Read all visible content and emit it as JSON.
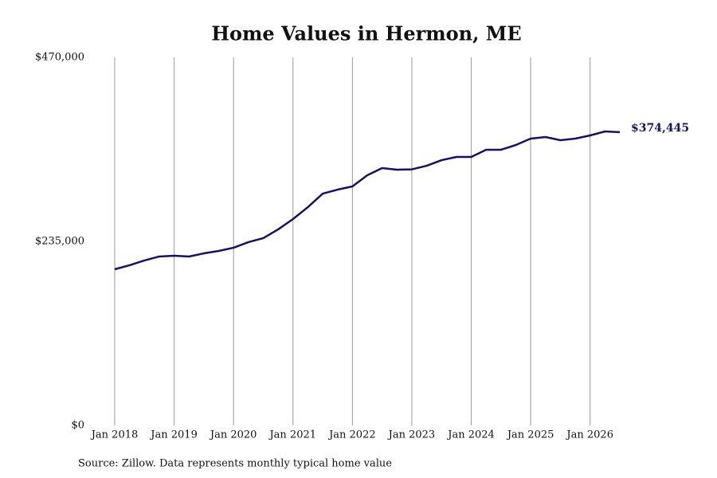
{
  "chart_data": {
    "type": "line",
    "title": "Home Values in Hermon, ME",
    "source": "Source: Zillow. Data represents monthly typical home value",
    "x": [
      "2018-01",
      "2018-04",
      "2018-07",
      "2018-10",
      "2019-01",
      "2019-04",
      "2019-07",
      "2019-10",
      "2020-01",
      "2020-04",
      "2020-07",
      "2020-10",
      "2021-01",
      "2021-04",
      "2021-07",
      "2021-10",
      "2022-01",
      "2022-04",
      "2022-07",
      "2022-10",
      "2023-01",
      "2023-04",
      "2023-07",
      "2023-10",
      "2024-01",
      "2024-04",
      "2024-07",
      "2024-10",
      "2025-01",
      "2025-04",
      "2025-07",
      "2025-10",
      "2026-01",
      "2026-04",
      "2026-07"
    ],
    "series": [
      {
        "name": "Home value",
        "color": "#14145e",
        "values": [
          199400,
          204500,
          210600,
          215700,
          216700,
          215700,
          219700,
          222800,
          226900,
          234000,
          239100,
          250300,
          263500,
          278700,
          296000,
          301100,
          305200,
          319400,
          328600,
          326600,
          327000,
          331600,
          338700,
          342800,
          342800,
          352000,
          352000,
          358100,
          366200,
          368300,
          364200,
          366200,
          370300,
          375400,
          374445
        ],
        "value_labels": [
          null,
          null,
          null,
          null,
          null,
          null,
          null,
          null,
          null,
          null,
          null,
          null,
          null,
          null,
          null,
          null,
          null,
          null,
          null,
          null,
          null,
          null,
          null,
          null,
          null,
          null,
          null,
          null,
          null,
          null,
          null,
          null,
          null,
          null,
          "$374,445"
        ]
      }
    ],
    "xlim": [
      "2018-01",
      "2026-07"
    ],
    "xticks": [
      {
        "value": "2018-01",
        "label": "Jan 2018"
      },
      {
        "value": "2019-01",
        "label": "Jan 2019"
      },
      {
        "value": "2020-01",
        "label": "Jan 2020"
      },
      {
        "value": "2021-01",
        "label": "Jan 2021"
      },
      {
        "value": "2022-01",
        "label": "Jan 2022"
      },
      {
        "value": "2023-01",
        "label": "Jan 2023"
      },
      {
        "value": "2024-01",
        "label": "Jan 2024"
      },
      {
        "value": "2025-01",
        "label": "Jan 2025"
      },
      {
        "value": "2026-01",
        "label": "Jan 2026"
      }
    ],
    "ylim": [
      0,
      470000
    ],
    "yticks": [
      {
        "value": 0,
        "label": "$0"
      },
      {
        "value": 235000,
        "label": "$235,000"
      },
      {
        "value": 470000,
        "label": "$470,000"
      }
    ],
    "grid": "x"
  }
}
